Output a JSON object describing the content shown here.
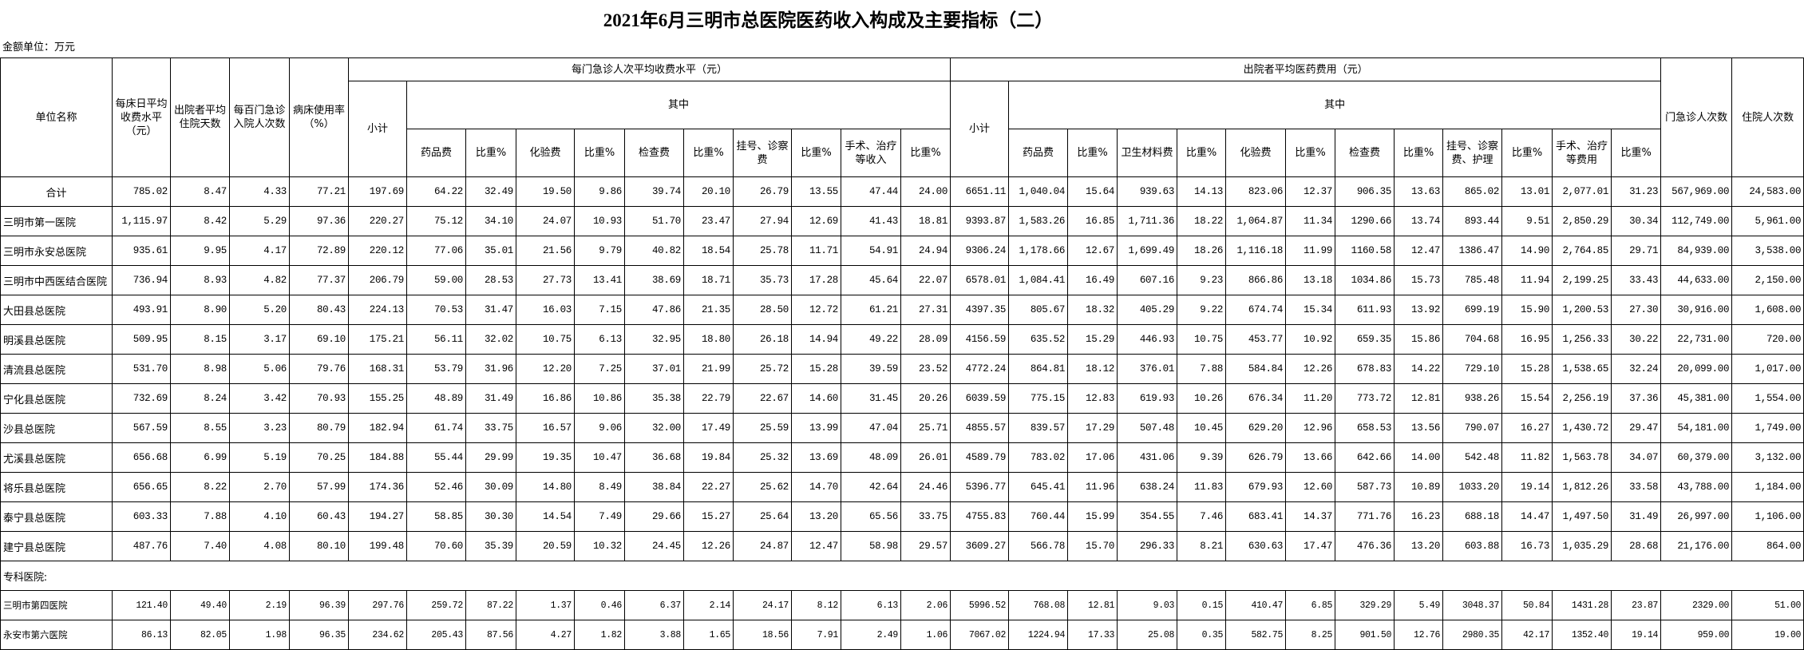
{
  "title": "2021年6月三明市总医院医药收入构成及主要指标（二）",
  "unit_note": "金额单位：万元",
  "header": {
    "unit_name": "单位名称",
    "bed_day_fee": "每床日平均收费水平（元）",
    "avg_stay_days": "出院者平均住院天数",
    "admit_per_100": "每百门急诊入院人次数",
    "bed_usage": "病床使用率（%）",
    "outpatient_group": "每门急诊人次平均收费水平（元）",
    "inpatient_group": "出院者平均医药费用（元）",
    "subtotal": "小计",
    "of_which": "其中",
    "outpatient_visits": "门急诊人次数",
    "inpatient_visits": "住院人次数",
    "outpatient_sub": [
      "药品费",
      "比重%",
      "化验费",
      "比重%",
      "检查费",
      "比重%",
      "挂号、诊察费",
      "比重%",
      "手术、治疗等收入",
      "比重%"
    ],
    "inpatient_sub": [
      "药品费",
      "比重%",
      "卫生材料费",
      "比重%",
      "化验费",
      "比重%",
      "检查费",
      "比重%",
      "挂号、诊察费、护理",
      "比重%",
      "手术、治疗等费用",
      "比重%"
    ]
  },
  "rows": [
    [
      "合计",
      "785.02",
      "8.47",
      "4.33",
      "77.21",
      "197.69",
      "64.22",
      "32.49",
      "19.50",
      "9.86",
      "39.74",
      "20.10",
      "26.79",
      "13.55",
      "47.44",
      "24.00",
      "6651.11",
      "1,040.04",
      "15.64",
      "939.63",
      "14.13",
      "823.06",
      "12.37",
      "906.35",
      "13.63",
      "865.02",
      "13.01",
      "2,077.01",
      "31.23",
      "567,969.00",
      "24,583.00"
    ],
    [
      "三明市第一医院",
      "1,115.97",
      "8.42",
      "5.29",
      "97.36",
      "220.27",
      "75.12",
      "34.10",
      "24.07",
      "10.93",
      "51.70",
      "23.47",
      "27.94",
      "12.69",
      "41.43",
      "18.81",
      "9393.87",
      "1,583.26",
      "16.85",
      "1,711.36",
      "18.22",
      "1,064.87",
      "11.34",
      "1290.66",
      "13.74",
      "893.44",
      "9.51",
      "2,850.29",
      "30.34",
      "112,749.00",
      "5,961.00"
    ],
    [
      "三明市永安总医院",
      "935.61",
      "9.95",
      "4.17",
      "72.89",
      "220.12",
      "77.06",
      "35.01",
      "21.56",
      "9.79",
      "40.82",
      "18.54",
      "25.78",
      "11.71",
      "54.91",
      "24.94",
      "9306.24",
      "1,178.66",
      "12.67",
      "1,699.49",
      "18.26",
      "1,116.18",
      "11.99",
      "1160.58",
      "12.47",
      "1386.47",
      "14.90",
      "2,764.85",
      "29.71",
      "84,939.00",
      "3,538.00"
    ],
    [
      "三明市中西医结合医院",
      "736.94",
      "8.93",
      "4.82",
      "77.37",
      "206.79",
      "59.00",
      "28.53",
      "27.73",
      "13.41",
      "38.69",
      "18.71",
      "35.73",
      "17.28",
      "45.64",
      "22.07",
      "6578.01",
      "1,084.41",
      "16.49",
      "607.16",
      "9.23",
      "866.86",
      "13.18",
      "1034.86",
      "15.73",
      "785.48",
      "11.94",
      "2,199.25",
      "33.43",
      "44,633.00",
      "2,150.00"
    ],
    [
      "大田县总医院",
      "493.91",
      "8.90",
      "5.20",
      "80.43",
      "224.13",
      "70.53",
      "31.47",
      "16.03",
      "7.15",
      "47.86",
      "21.35",
      "28.50",
      "12.72",
      "61.21",
      "27.31",
      "4397.35",
      "805.67",
      "18.32",
      "405.29",
      "9.22",
      "674.74",
      "15.34",
      "611.93",
      "13.92",
      "699.19",
      "15.90",
      "1,200.53",
      "27.30",
      "30,916.00",
      "1,608.00"
    ],
    [
      "明溪县总医院",
      "509.95",
      "8.15",
      "3.17",
      "69.10",
      "175.21",
      "56.11",
      "32.02",
      "10.75",
      "6.13",
      "32.95",
      "18.80",
      "26.18",
      "14.94",
      "49.22",
      "28.09",
      "4156.59",
      "635.52",
      "15.29",
      "446.93",
      "10.75",
      "453.77",
      "10.92",
      "659.35",
      "15.86",
      "704.68",
      "16.95",
      "1,256.33",
      "30.22",
      "22,731.00",
      "720.00"
    ],
    [
      "清流县总医院",
      "531.70",
      "8.98",
      "5.06",
      "79.76",
      "168.31",
      "53.79",
      "31.96",
      "12.20",
      "7.25",
      "37.01",
      "21.99",
      "25.72",
      "15.28",
      "39.59",
      "23.52",
      "4772.24",
      "864.81",
      "18.12",
      "376.01",
      "7.88",
      "584.84",
      "12.26",
      "678.83",
      "14.22",
      "729.10",
      "15.28",
      "1,538.65",
      "32.24",
      "20,099.00",
      "1,017.00"
    ],
    [
      "宁化县总医院",
      "732.69",
      "8.24",
      "3.42",
      "70.93",
      "155.25",
      "48.89",
      "31.49",
      "16.86",
      "10.86",
      "35.38",
      "22.79",
      "22.67",
      "14.60",
      "31.45",
      "20.26",
      "6039.59",
      "775.15",
      "12.83",
      "619.93",
      "10.26",
      "676.34",
      "11.20",
      "773.72",
      "12.81",
      "938.26",
      "15.54",
      "2,256.19",
      "37.36",
      "45,381.00",
      "1,554.00"
    ],
    [
      "沙县总医院",
      "567.59",
      "8.55",
      "3.23",
      "80.79",
      "182.94",
      "61.74",
      "33.75",
      "16.57",
      "9.06",
      "32.00",
      "17.49",
      "25.59",
      "13.99",
      "47.04",
      "25.71",
      "4855.57",
      "839.57",
      "17.29",
      "507.48",
      "10.45",
      "629.20",
      "12.96",
      "658.53",
      "13.56",
      "790.07",
      "16.27",
      "1,430.72",
      "29.47",
      "54,181.00",
      "1,749.00"
    ],
    [
      "尤溪县总医院",
      "656.68",
      "6.99",
      "5.19",
      "70.25",
      "184.88",
      "55.44",
      "29.99",
      "19.35",
      "10.47",
      "36.68",
      "19.84",
      "25.32",
      "13.69",
      "48.09",
      "26.01",
      "4589.79",
      "783.02",
      "17.06",
      "431.06",
      "9.39",
      "626.79",
      "13.66",
      "642.66",
      "14.00",
      "542.48",
      "11.82",
      "1,563.78",
      "34.07",
      "60,379.00",
      "3,132.00"
    ],
    [
      "将乐县总医院",
      "656.65",
      "8.22",
      "2.70",
      "57.99",
      "174.36",
      "52.46",
      "30.09",
      "14.80",
      "8.49",
      "38.84",
      "22.27",
      "25.62",
      "14.70",
      "42.64",
      "24.46",
      "5396.77",
      "645.41",
      "11.96",
      "638.24",
      "11.83",
      "679.93",
      "12.60",
      "587.73",
      "10.89",
      "1033.20",
      "19.14",
      "1,812.26",
      "33.58",
      "43,788.00",
      "1,184.00"
    ],
    [
      "泰宁县总医院",
      "603.33",
      "7.88",
      "4.10",
      "60.43",
      "194.27",
      "58.85",
      "30.30",
      "14.54",
      "7.49",
      "29.66",
      "15.27",
      "25.64",
      "13.20",
      "65.56",
      "33.75",
      "4755.83",
      "760.44",
      "15.99",
      "354.55",
      "7.46",
      "683.41",
      "14.37",
      "771.76",
      "16.23",
      "688.18",
      "14.47",
      "1,497.50",
      "31.49",
      "26,997.00",
      "1,106.00"
    ],
    [
      "建宁县总医院",
      "487.76",
      "7.40",
      "4.08",
      "80.10",
      "199.48",
      "70.60",
      "35.39",
      "20.59",
      "10.32",
      "24.45",
      "12.26",
      "24.87",
      "12.47",
      "58.98",
      "29.57",
      "3609.27",
      "566.78",
      "15.70",
      "296.33",
      "8.21",
      "630.63",
      "17.47",
      "476.36",
      "13.20",
      "603.88",
      "16.73",
      "1,035.29",
      "28.68",
      "21,176.00",
      "864.00"
    ]
  ],
  "special_section_label": "专科医院:",
  "special_rows": [
    [
      "三明市第四医院",
      "121.40",
      "49.40",
      "2.19",
      "96.39",
      "297.76",
      "259.72",
      "87.22",
      "1.37",
      "0.46",
      "6.37",
      "2.14",
      "24.17",
      "8.12",
      "6.13",
      "2.06",
      "5996.52",
      "768.08",
      "12.81",
      "9.03",
      "0.15",
      "410.47",
      "6.85",
      "329.29",
      "5.49",
      "3048.37",
      "50.84",
      "1431.28",
      "23.87",
      "2329.00",
      "51.00"
    ],
    [
      "永安市第六医院",
      "86.13",
      "82.05",
      "1.98",
      "96.35",
      "234.62",
      "205.43",
      "87.56",
      "4.27",
      "1.82",
      "3.88",
      "1.65",
      "18.56",
      "7.91",
      "2.49",
      "1.06",
      "7067.02",
      "1224.94",
      "17.33",
      "25.08",
      "0.35",
      "582.75",
      "8.25",
      "901.50",
      "12.76",
      "2980.35",
      "42.17",
      "1352.40",
      "19.14",
      "959.00",
      "19.00"
    ]
  ]
}
